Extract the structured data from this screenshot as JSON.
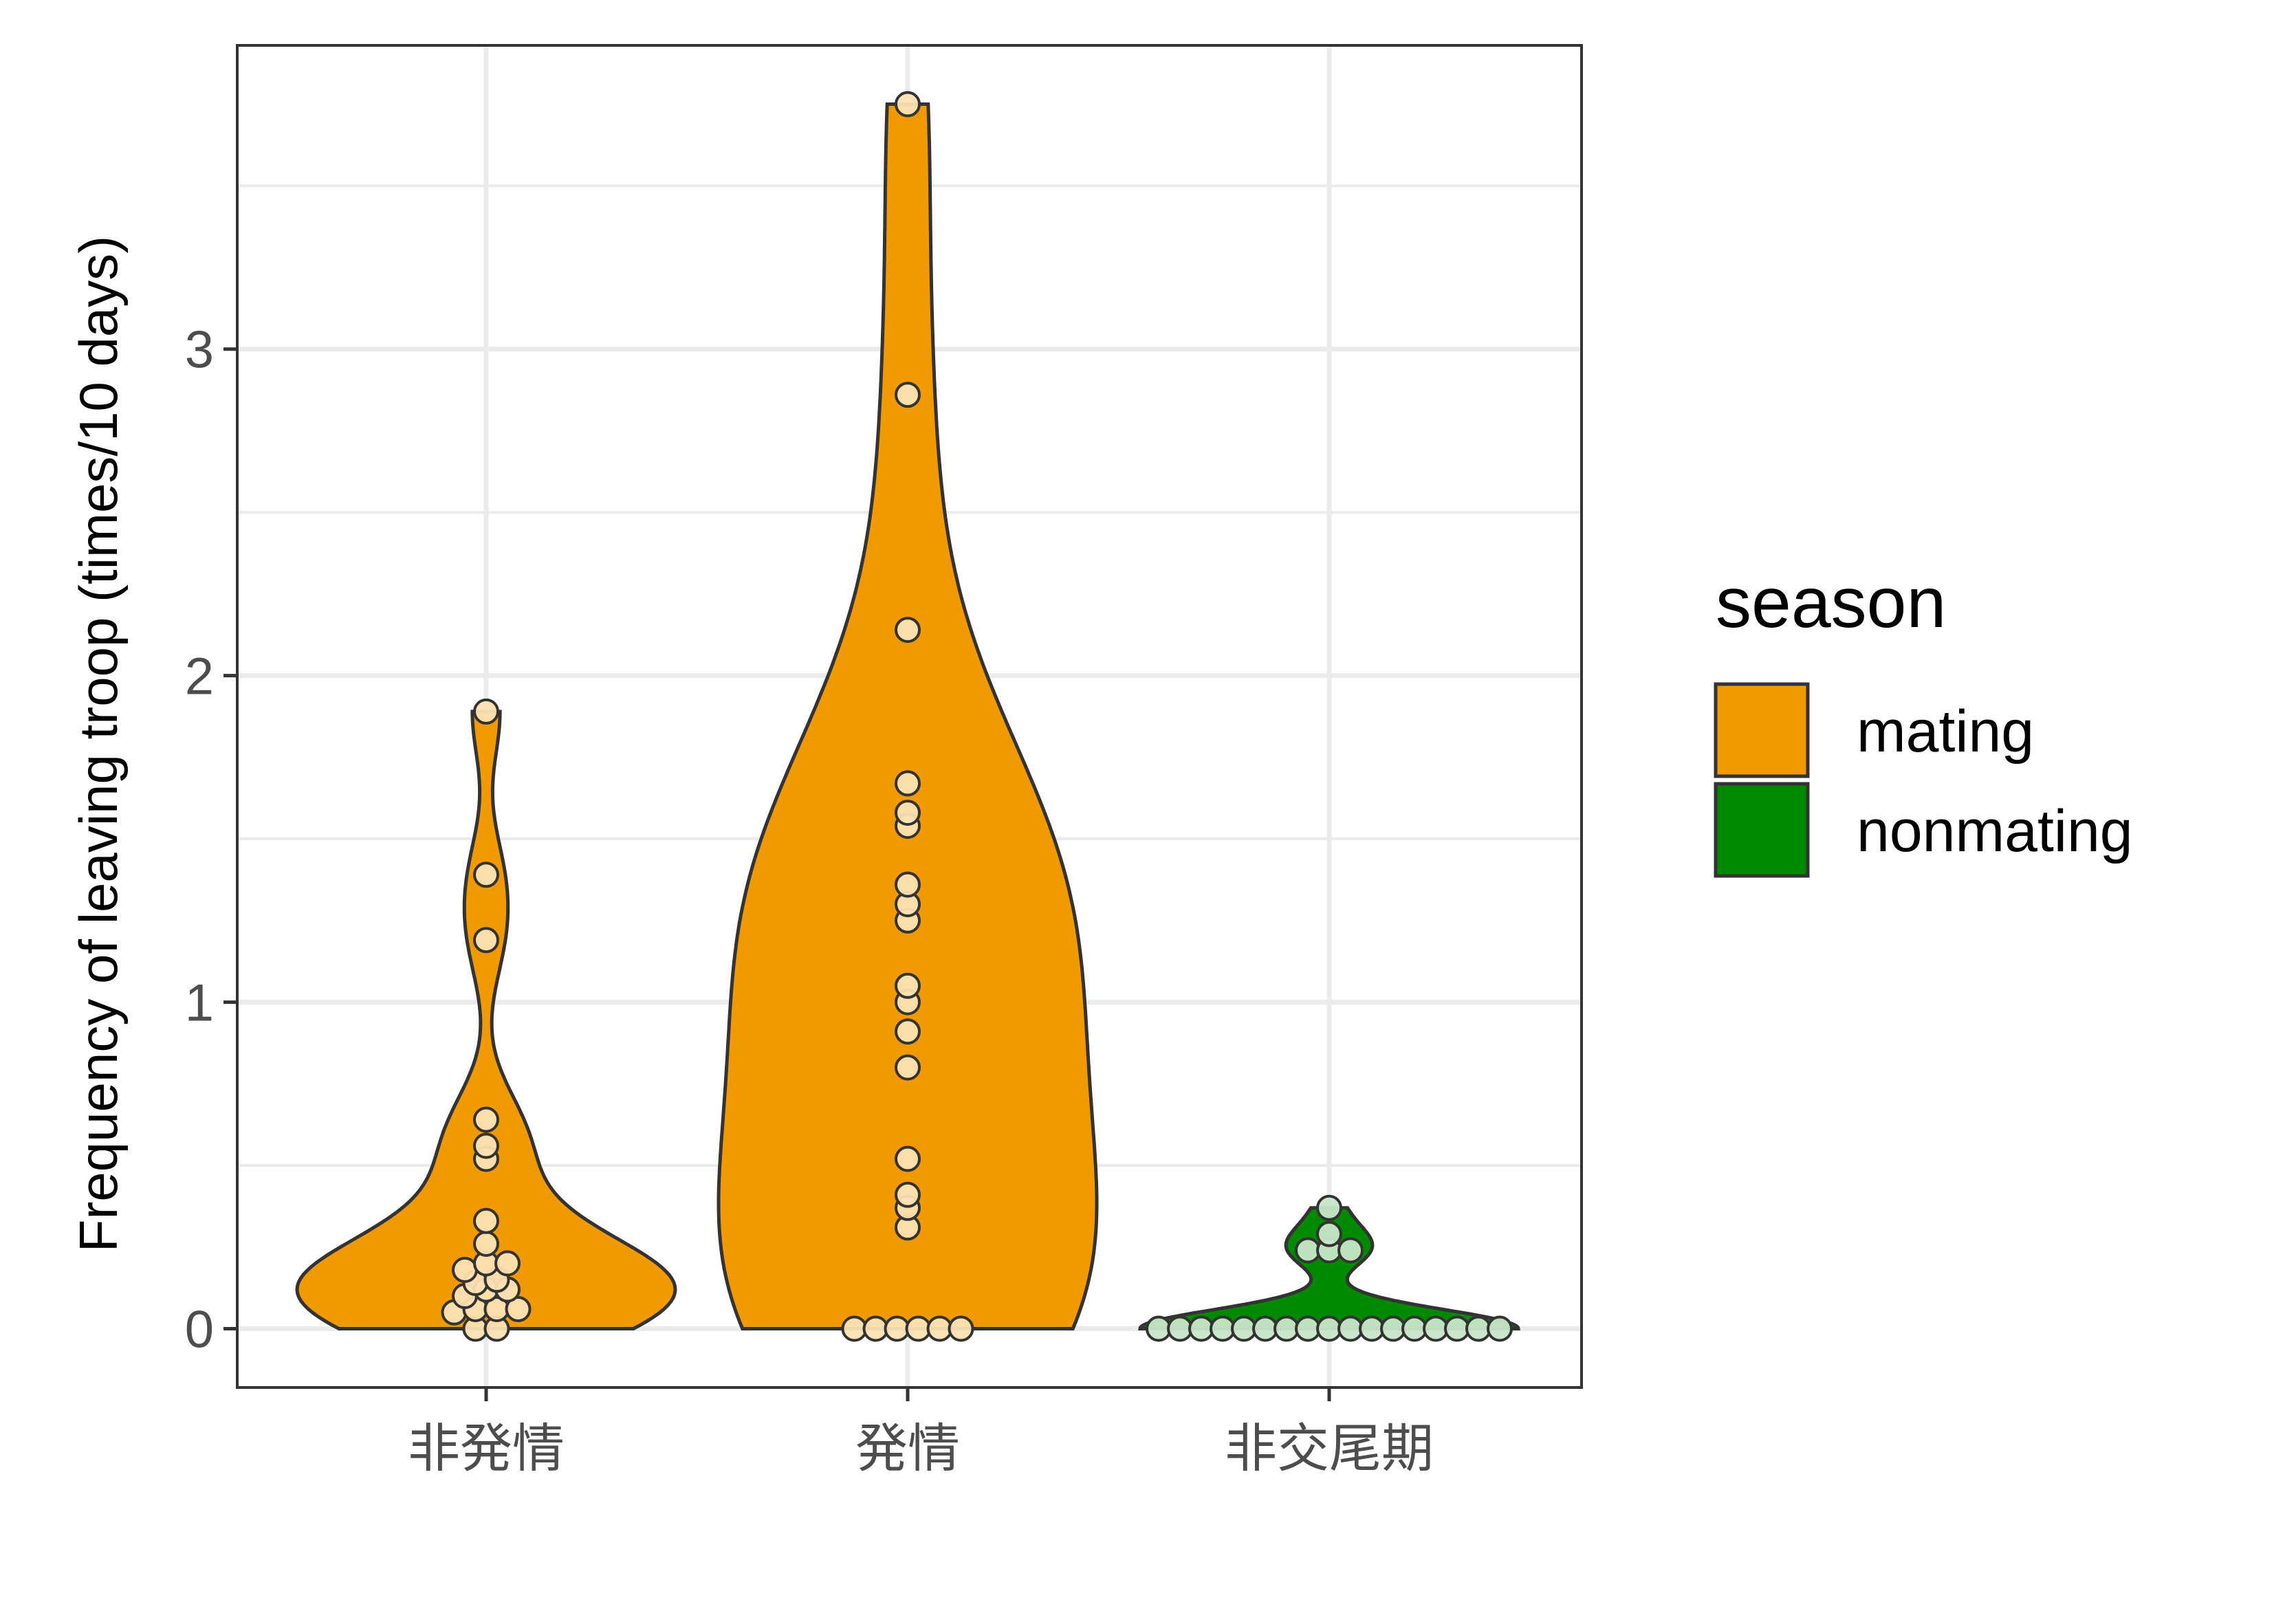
{
  "chart_data": {
    "type": "violin",
    "ylabel": "Frequency of leaving troop (times/10 days)",
    "categories": [
      "非発情",
      "発情",
      "非交尾期"
    ],
    "yticks": [
      0,
      1,
      2,
      3
    ],
    "ylim": [
      -0.18,
      3.93
    ],
    "grid": true,
    "legend": {
      "title": "season",
      "placement": "right",
      "entries": [
        {
          "label": "mating",
          "color": "#f09a00"
        },
        {
          "label": "nonmating",
          "color": "#008a00"
        }
      ]
    },
    "series": [
      {
        "category": "非発情",
        "season": "mating",
        "points": [
          0,
          0,
          0.05,
          0.06,
          0.06,
          0.06,
          0.1,
          0.12,
          0.12,
          0.14,
          0.15,
          0.18,
          0.2,
          0.2,
          0.26,
          0.33,
          0.52,
          0.56,
          0.64,
          1.19,
          1.39,
          1.89
        ]
      },
      {
        "category": "発情",
        "season": "mating",
        "points": [
          0,
          0,
          0,
          0,
          0,
          0,
          0.31,
          0.37,
          0.41,
          0.52,
          0.8,
          0.91,
          1.0,
          1.05,
          1.25,
          1.3,
          1.36,
          1.54,
          1.58,
          1.67,
          2.14,
          2.86,
          3.75
        ]
      },
      {
        "category": "非交尾期",
        "season": "nonmating",
        "points": [
          0,
          0,
          0,
          0,
          0,
          0,
          0,
          0,
          0,
          0,
          0,
          0,
          0,
          0,
          0,
          0,
          0,
          0.24,
          0.24,
          0.24,
          0.29,
          0.37
        ]
      }
    ],
    "colors": {
      "mating_fill": "#f09a00",
      "nonmating_fill": "#008a00",
      "outline": "#333333",
      "grid": "#ebebeb",
      "point_mating": "#fce1b3",
      "point_nonmating": "#c8e6c8"
    }
  }
}
